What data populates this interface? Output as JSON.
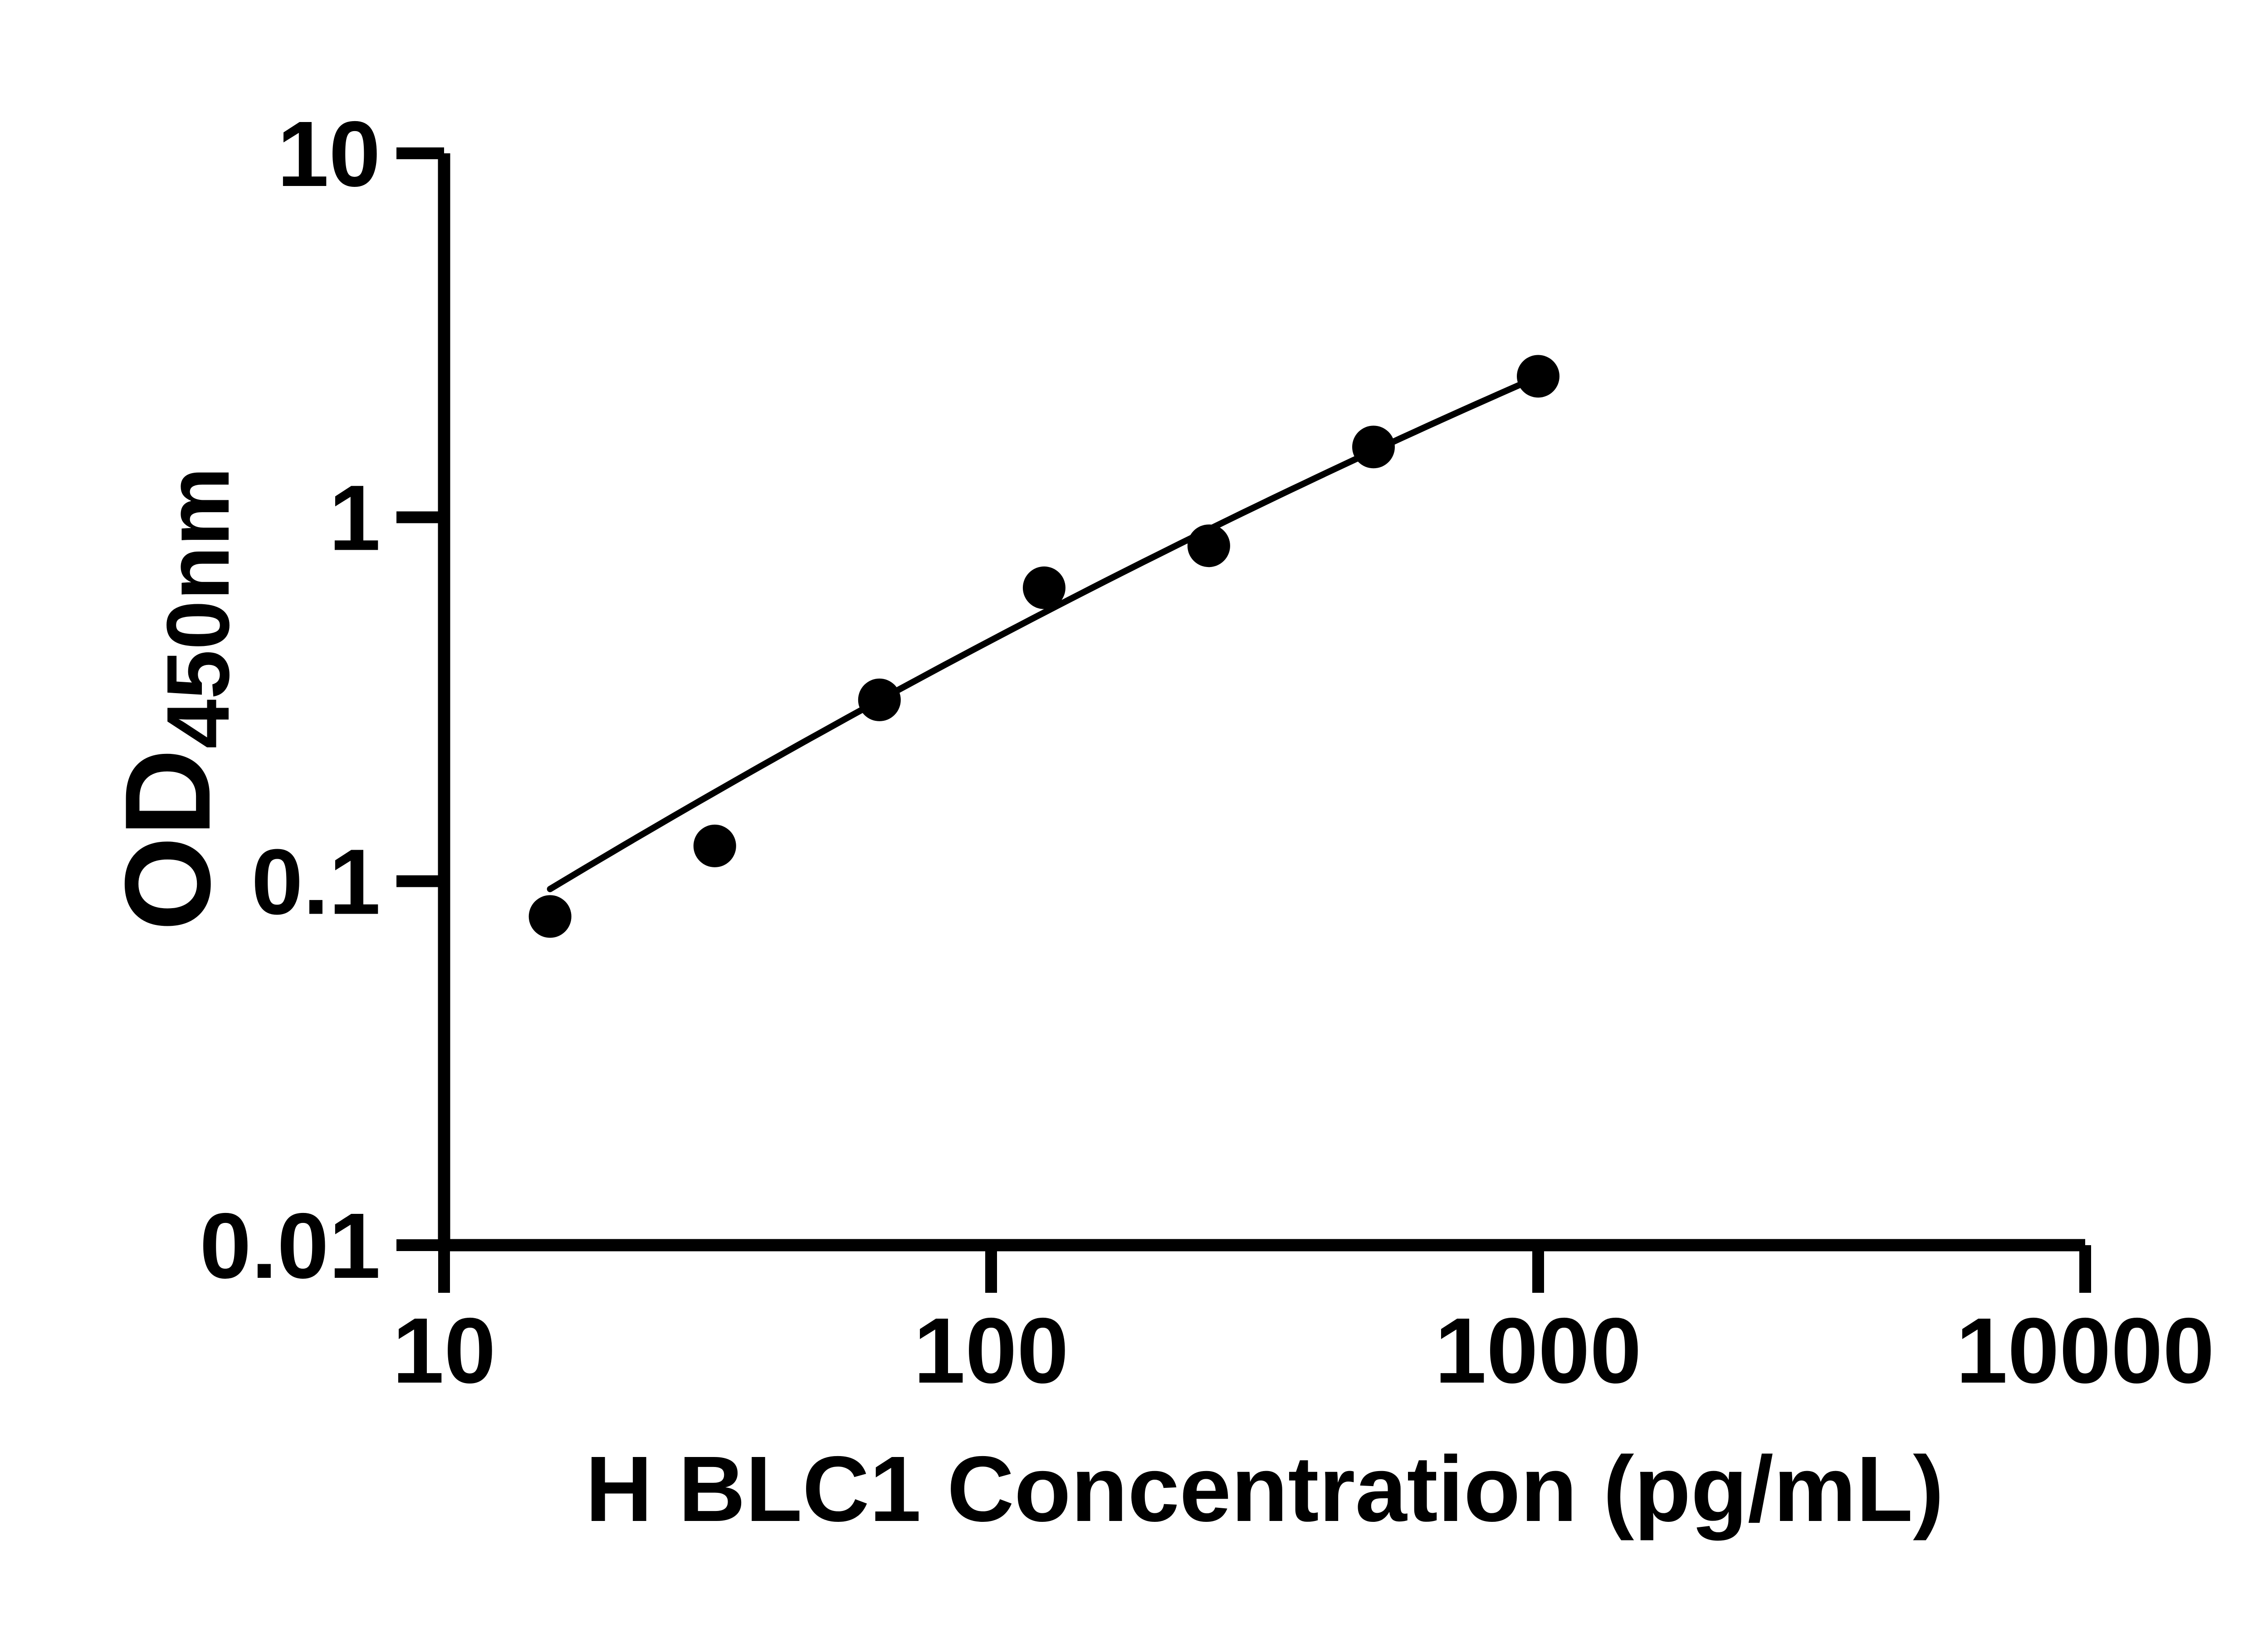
{
  "figure": {
    "background": "#ffffff",
    "ink": "#000000",
    "description": "ELISA standard curve, black on white, no grid, no legend"
  },
  "chart_data": {
    "type": "scatter",
    "title": "",
    "xlabel": "H BLC1 Concentration (pg/mL)",
    "ylabel_main": "OD",
    "ylabel_sub": "450nm",
    "x_scale": "log10",
    "y_scale": "log10",
    "xlim": [
      10,
      10000
    ],
    "ylim": [
      0.01,
      10
    ],
    "grid": false,
    "legend": "none",
    "x_ticks": [
      {
        "value": 10,
        "label": "10"
      },
      {
        "value": 100,
        "label": "100"
      },
      {
        "value": 1000,
        "label": "1000"
      },
      {
        "value": 10000,
        "label": "10000"
      }
    ],
    "y_ticks": [
      {
        "value": 0.01,
        "label": "0.01"
      },
      {
        "value": 0.1,
        "label": "0.1"
      },
      {
        "value": 1,
        "label": "1"
      },
      {
        "value": 10,
        "label": "10"
      }
    ],
    "marker": {
      "shape": "filled-circle",
      "color": "#000000"
    },
    "points": [
      {
        "x": 15.625,
        "od": 0.08
      },
      {
        "x": 31.25,
        "od": 0.125
      },
      {
        "x": 62.5,
        "od": 0.315
      },
      {
        "x": 125,
        "od": 0.64
      },
      {
        "x": 250,
        "od": 0.835
      },
      {
        "x": 500,
        "od": 1.56
      },
      {
        "x": 1000,
        "od": 2.44
      }
    ],
    "trend_line": {
      "kind": "quadratic-in-loglog",
      "coeffs": [
        -2.197,
        1.0665,
        -0.0685
      ],
      "x_start": 15.625,
      "x_end": 1000
    }
  }
}
